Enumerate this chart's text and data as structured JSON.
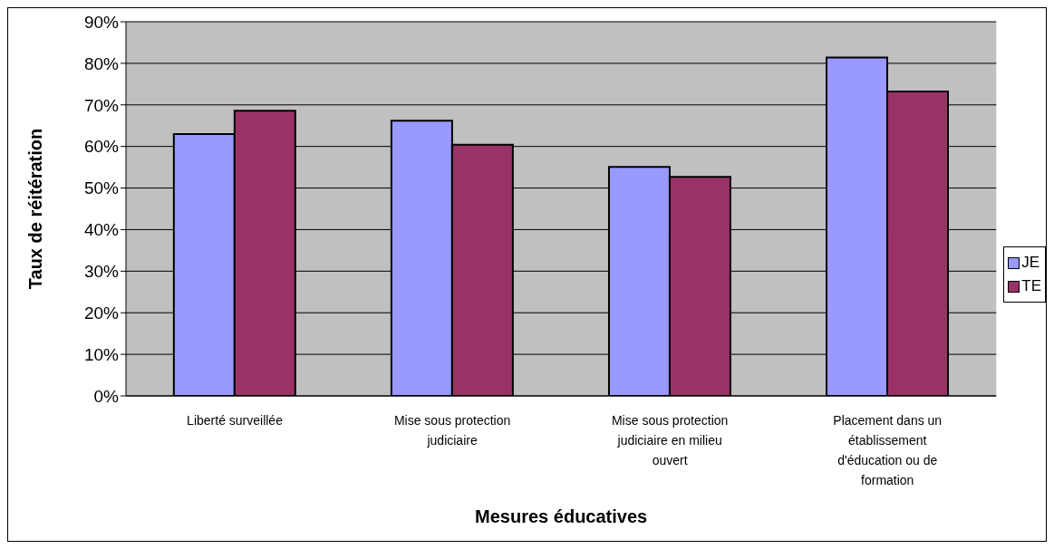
{
  "chart_data": {
    "type": "bar",
    "xlabel": "Mesures éducatives",
    "ylabel": "Taux de réitération",
    "categories": [
      "Liberté surveillée",
      "Mise sous protection judiciaire",
      "Mise sous protection judiciaire en milieu ouvert",
      "Placement dans un établissement d'éducation ou de formation"
    ],
    "series": [
      {
        "name": "JE",
        "color": "#9999ff",
        "values": [
          63,
          66.2,
          55.1,
          81.4
        ]
      },
      {
        "name": "TE",
        "color": "#993366",
        "values": [
          68.6,
          60.4,
          52.7,
          73.2
        ]
      }
    ],
    "ylim": [
      0,
      90
    ],
    "yticks": [
      {
        "value": 0,
        "label": "0%"
      },
      {
        "value": 10,
        "label": "10%"
      },
      {
        "value": 20,
        "label": "20%"
      },
      {
        "value": 30,
        "label": "30%"
      },
      {
        "value": 40,
        "label": "40%"
      },
      {
        "value": 50,
        "label": "50%"
      },
      {
        "value": 60,
        "label": "60%"
      },
      {
        "value": 70,
        "label": "70%"
      },
      {
        "value": 80,
        "label": "80%"
      },
      {
        "value": 90,
        "label": "90%"
      }
    ],
    "grid": "y",
    "legend": "right"
  }
}
